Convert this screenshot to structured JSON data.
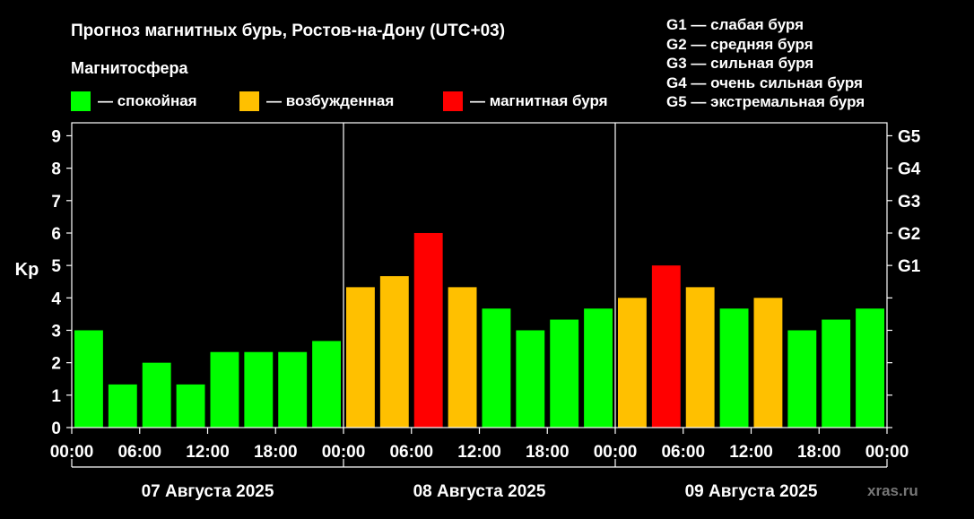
{
  "chart_data": {
    "type": "bar",
    "title": "Прогноз магнитных бурь, Ростов-на-Дону (UTC+03)",
    "subtitle": "Магнитосфера",
    "ylabel": "Kp",
    "ylim": [
      0,
      9.4
    ],
    "yticks": [
      "0",
      "1",
      "2",
      "3",
      "4",
      "5",
      "6",
      "7",
      "8",
      "9"
    ],
    "g_scale": [
      {
        "label": "G1",
        "kp": 5
      },
      {
        "label": "G2",
        "kp": 6
      },
      {
        "label": "G3",
        "kp": 7
      },
      {
        "label": "G4",
        "kp": 8
      },
      {
        "label": "G5",
        "kp": 9
      }
    ],
    "xtick_labels": [
      "00:00",
      "06:00",
      "12:00",
      "18:00",
      "00:00",
      "06:00",
      "12:00",
      "18:00",
      "00:00",
      "06:00",
      "12:00",
      "18:00",
      "00:00"
    ],
    "days": [
      "07 Августа 2025",
      "08 Августа 2025",
      "09 Августа 2025"
    ],
    "grid": false,
    "legend": [
      {
        "color": "#00ff00",
        "label": "— спокойная"
      },
      {
        "color": "#ffc000",
        "label": "— возбужденная"
      },
      {
        "color": "#ff0000",
        "label": "— магнитная буря"
      }
    ],
    "g_legend": [
      "G1 — слабая буря",
      "G2 — средняя буря",
      "G3 — сильная буря",
      "G4 — очень сильная буря",
      "G5 — экстремальная буря"
    ],
    "values": [
      3,
      1.33,
      2,
      1.33,
      2.33,
      2.33,
      2.33,
      2.67,
      4.33,
      4.67,
      6,
      4.33,
      3.67,
      3,
      3.33,
      3.67,
      4,
      5,
      4.33,
      3.67,
      4,
      3,
      3.33,
      3.67
    ],
    "colors": {
      "quiet": "#00ff00",
      "active": "#ffc000",
      "storm": "#ff0000"
    },
    "watermark": "xras.ru"
  }
}
